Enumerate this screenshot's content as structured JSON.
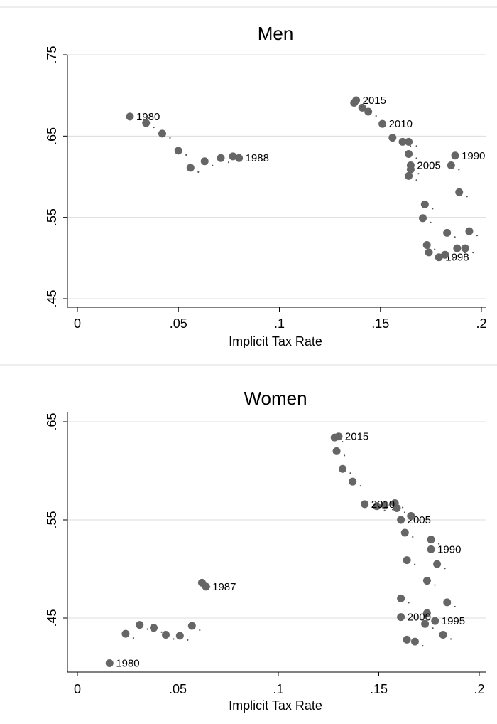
{
  "chart_data": [
    {
      "type": "scatter",
      "title": "Men",
      "xlabel": "Implicit Tax Rate",
      "ylabel": "",
      "xlim": [
        0,
        0.2
      ],
      "ylim": [
        0.45,
        0.75
      ],
      "grid": true,
      "xticks": [
        0,
        0.05,
        0.1,
        0.15,
        0.2
      ],
      "xtick_labels": [
        "0",
        ".05",
        ".1",
        ".15",
        ".2"
      ],
      "yticks": [
        0.45,
        0.55,
        0.65,
        0.75
      ],
      "ytick_labels": [
        ".45",
        ".55",
        ".65",
        ".75"
      ],
      "points": [
        {
          "x": 0.026,
          "y": 0.674,
          "label": "1980"
        },
        {
          "x": 0.034,
          "y": 0.666
        },
        {
          "x": 0.042,
          "y": 0.653
        },
        {
          "x": 0.05,
          "y": 0.632
        },
        {
          "x": 0.056,
          "y": 0.611
        },
        {
          "x": 0.063,
          "y": 0.619
        },
        {
          "x": 0.071,
          "y": 0.623
        },
        {
          "x": 0.077,
          "y": 0.625
        },
        {
          "x": 0.08,
          "y": 0.623,
          "label": "1988"
        },
        {
          "x": 0.187,
          "y": 0.626,
          "label": "1990"
        },
        {
          "x": 0.185,
          "y": 0.614
        },
        {
          "x": 0.189,
          "y": 0.581
        },
        {
          "x": 0.172,
          "y": 0.566
        },
        {
          "x": 0.171,
          "y": 0.549
        },
        {
          "x": 0.183,
          "y": 0.531
        },
        {
          "x": 0.194,
          "y": 0.533
        },
        {
          "x": 0.173,
          "y": 0.516
        },
        {
          "x": 0.192,
          "y": 0.512
        },
        {
          "x": 0.174,
          "y": 0.507
        },
        {
          "x": 0.188,
          "y": 0.512
        },
        {
          "x": 0.179,
          "y": 0.501,
          "label": "1998"
        },
        {
          "x": 0.182,
          "y": 0.504
        },
        {
          "x": 0.164,
          "y": 0.601
        },
        {
          "x": 0.165,
          "y": 0.609
        },
        {
          "x": 0.165,
          "y": 0.614,
          "label": "2005"
        },
        {
          "x": 0.164,
          "y": 0.628
        },
        {
          "x": 0.164,
          "y": 0.643
        },
        {
          "x": 0.161,
          "y": 0.643
        },
        {
          "x": 0.156,
          "y": 0.648
        },
        {
          "x": 0.151,
          "y": 0.665,
          "label": "2010"
        },
        {
          "x": 0.144,
          "y": 0.68
        },
        {
          "x": 0.141,
          "y": 0.685
        },
        {
          "x": 0.137,
          "y": 0.691
        },
        {
          "x": 0.138,
          "y": 0.694,
          "label": "2015"
        }
      ]
    },
    {
      "type": "scatter",
      "title": "Women",
      "xlabel": "Implicit Tax Rate",
      "ylabel": "",
      "xlim": [
        0,
        0.2
      ],
      "ylim": [
        0.4,
        0.65
      ],
      "grid": true,
      "xticks": [
        0,
        0.05,
        0.1,
        0.15,
        0.2
      ],
      "xtick_labels": [
        "0",
        ".05",
        ".1",
        ".15",
        ".2"
      ],
      "yticks": [
        0.45,
        0.55,
        0.65
      ],
      "ytick_labels": [
        ".45",
        ".55",
        ".65"
      ],
      "points": [
        {
          "x": 0.016,
          "y": 0.404,
          "label": "1980"
        },
        {
          "x": 0.024,
          "y": 0.434
        },
        {
          "x": 0.031,
          "y": 0.443
        },
        {
          "x": 0.038,
          "y": 0.44
        },
        {
          "x": 0.044,
          "y": 0.433
        },
        {
          "x": 0.051,
          "y": 0.432
        },
        {
          "x": 0.057,
          "y": 0.442
        },
        {
          "x": 0.062,
          "y": 0.486
        },
        {
          "x": 0.064,
          "y": 0.482,
          "label": "1987"
        },
        {
          "x": 0.176,
          "y": 0.52,
          "label": "1990"
        },
        {
          "x": 0.176,
          "y": 0.53
        },
        {
          "x": 0.179,
          "y": 0.505
        },
        {
          "x": 0.174,
          "y": 0.488
        },
        {
          "x": 0.184,
          "y": 0.466
        },
        {
          "x": 0.174,
          "y": 0.455
        },
        {
          "x": 0.178,
          "y": 0.447,
          "label": "1995"
        },
        {
          "x": 0.173,
          "y": 0.444
        },
        {
          "x": 0.182,
          "y": 0.433
        },
        {
          "x": 0.164,
          "y": 0.428
        },
        {
          "x": 0.168,
          "y": 0.426
        },
        {
          "x": 0.161,
          "y": 0.451,
          "label": "2000"
        },
        {
          "x": 0.161,
          "y": 0.47
        },
        {
          "x": 0.164,
          "y": 0.509
        },
        {
          "x": 0.163,
          "y": 0.537
        },
        {
          "x": 0.161,
          "y": 0.55,
          "label": "2005"
        },
        {
          "x": 0.166,
          "y": 0.554
        },
        {
          "x": 0.159,
          "y": 0.562
        },
        {
          "x": 0.158,
          "y": 0.567
        },
        {
          "x": 0.153,
          "y": 0.565
        },
        {
          "x": 0.149,
          "y": 0.564
        },
        {
          "x": 0.143,
          "y": 0.566,
          "label": "2010"
        },
        {
          "x": 0.137,
          "y": 0.589
        },
        {
          "x": 0.132,
          "y": 0.602
        },
        {
          "x": 0.129,
          "y": 0.62
        },
        {
          "x": 0.128,
          "y": 0.634
        },
        {
          "x": 0.13,
          "y": 0.635,
          "label": "2015"
        }
      ]
    }
  ]
}
